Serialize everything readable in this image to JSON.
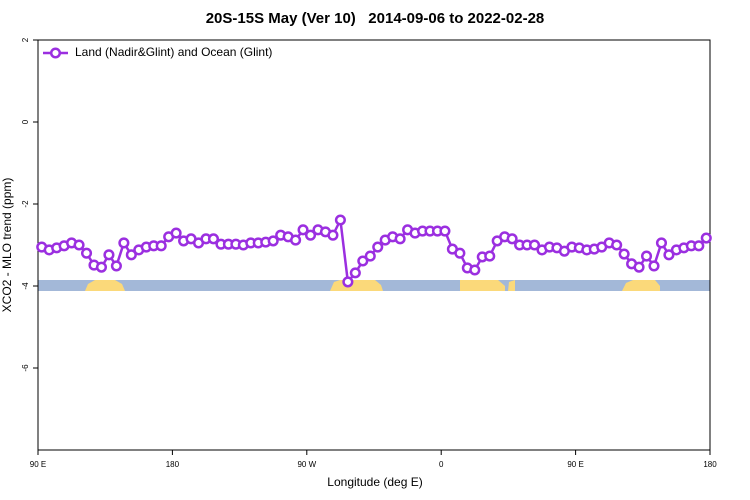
{
  "chart_data": {
    "type": "line",
    "title": "20S-15S May (Ver 10)   2014-09-06 to 2022-02-28",
    "xlabel": "Longitude (deg E)",
    "ylabel": "XCO2 - MLO trend (ppm)",
    "xlim": [
      90,
      540
    ],
    "xticks": [
      {
        "value": 90,
        "label": "90 E"
      },
      180,
      {
        "value": 270,
        "label": "90 W"
      },
      {
        "value": 360,
        "label": "0"
      },
      {
        "value": 450,
        "label": "90 E"
      },
      {
        "value": 540,
        "label": "180"
      }
    ],
    "ylim": [
      -8,
      2
    ],
    "yticks": [
      -6,
      -4,
      -2,
      0,
      2
    ],
    "legend": "upper left",
    "x": [
      92.5,
      97.5,
      102.5,
      107.5,
      112.5,
      117.5,
      122.5,
      127.5,
      132.5,
      137.5,
      142.5,
      147.5,
      152.5,
      157.5,
      162.5,
      167.5,
      172.5,
      177.5,
      182.5,
      187.5,
      192.5,
      197.5,
      202.5,
      207.5,
      212.5,
      217.5,
      222.5,
      227.5,
      232.5,
      237.5,
      242.5,
      247.5,
      252.5,
      257.5,
      262.5,
      267.5,
      272.5,
      277.5,
      282.5,
      287.5,
      292.5,
      297.5,
      302.5,
      307.5,
      312.5,
      317.5,
      322.5,
      327.5,
      332.5,
      337.5,
      342.5,
      347.5,
      352.5,
      357.5,
      362.5,
      367.5,
      372.5,
      377.5,
      382.5,
      387.5,
      392.5,
      397.5,
      402.5,
      407.5,
      412.5,
      417.5,
      422.5,
      427.5,
      432.5,
      437.5,
      442.5,
      447.5,
      452.5,
      457.5,
      462.5,
      467.5,
      472.5,
      477.5,
      482.5,
      487.5,
      492.5,
      497.5,
      502.5,
      507.5,
      512.5,
      517.5,
      522.5,
      527.5,
      532.5,
      537.5
    ],
    "series": [
      {
        "name": "Land (Nadir&Glint) and Ocean (Glint)",
        "color": "#9b2fe0",
        "values": [
          -3.05,
          -3.12,
          -3.07,
          -3.02,
          -2.95,
          -3.0,
          -3.2,
          -3.49,
          -3.54,
          -3.24,
          -3.51,
          -2.95,
          -3.24,
          -3.12,
          -3.05,
          -3.02,
          -3.02,
          -2.8,
          -2.71,
          -2.9,
          -2.85,
          -2.95,
          -2.85,
          -2.85,
          -2.98,
          -2.98,
          -2.98,
          -3.0,
          -2.95,
          -2.95,
          -2.93,
          -2.9,
          -2.76,
          -2.8,
          -2.88,
          -2.63,
          -2.76,
          -2.63,
          -2.68,
          -2.76,
          -2.39,
          -3.9,
          -3.68,
          -3.39,
          -3.27,
          -3.05,
          -2.88,
          -2.8,
          -2.85,
          -2.63,
          -2.71,
          -2.66,
          -2.66,
          -2.66,
          -2.66,
          -3.1,
          -3.2,
          -3.56,
          -3.61,
          -3.29,
          -3.27,
          -2.9,
          -2.8,
          -2.85,
          -3.0,
          -3.0,
          -3.0,
          -3.12,
          -3.05,
          -3.07,
          -3.15,
          -3.05,
          -3.07,
          -3.12,
          -3.1,
          -3.05,
          -2.95,
          -3.0,
          -3.22,
          -3.46,
          -3.54,
          -3.27,
          -3.51,
          -2.95,
          -3.24,
          -3.12,
          -3.07,
          -3.02,
          -3.02,
          -2.83
        ]
      }
    ]
  }
}
